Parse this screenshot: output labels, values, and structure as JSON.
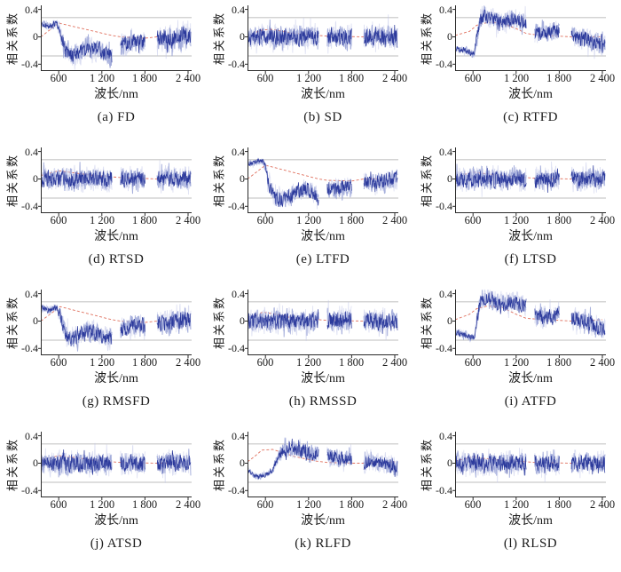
{
  "figure": {
    "description": "Grid of 12 correlation coefficient spectra subplots",
    "rows": 4,
    "cols": 3
  },
  "axes": {
    "ylabel": "相关系数",
    "xlabel": "波长/nm",
    "yticks": [
      0.4,
      0,
      -0.4
    ],
    "ytick_labels": [
      "0.4",
      "0",
      "-0.4"
    ],
    "xticks": [
      600,
      1200,
      1800,
      2400
    ],
    "xtick_labels": [
      "600",
      "1 200",
      "1 800",
      "2 400"
    ],
    "xlim": [
      350,
      2450
    ],
    "ylim": [
      -0.5,
      0.46
    ],
    "threshold": 0.28,
    "gaps": [
      [
        1340,
        1460
      ],
      [
        1800,
        1970
      ]
    ],
    "grid": false
  },
  "colors": {
    "line_main": "#2c3a9c",
    "line_halo": "#98a2d6",
    "line_faint": "#bdc3e7",
    "trend_red": "#e0715f",
    "threshold_gray": "#a9a9a9",
    "axis_black": "#2a2a2a",
    "background": "#ffffff",
    "text": "#1a1a1a"
  },
  "chart_data": [
    {
      "id": "a",
      "type": "line",
      "caption": "(a) FD",
      "method": "FD",
      "seed": 3,
      "blue_trend": {
        "x": [
          350,
          480,
          560,
          610,
          650,
          700,
          800,
          900,
          1000,
          1100,
          1200,
          1300,
          1340,
          1460,
          1600,
          1700,
          1800,
          1970,
          2100,
          2250,
          2400
        ],
        "y": [
          0.2,
          0.16,
          0.2,
          0.12,
          -0.04,
          -0.2,
          -0.27,
          -0.22,
          -0.16,
          -0.18,
          -0.22,
          -0.26,
          -0.28,
          -0.12,
          -0.08,
          -0.06,
          -0.1,
          -0.02,
          -0.04,
          0.0,
          0.02
        ]
      },
      "noise_amp": {
        "x": [
          350,
          590,
          650,
          1970,
          2100,
          2400
        ],
        "a": [
          0.04,
          0.05,
          0.12,
          0.12,
          0.14,
          0.15
        ]
      },
      "red_trend": {
        "x": [
          350,
          600,
          1340,
          1460,
          1800,
          1970,
          2400
        ],
        "y": [
          0.0,
          0.2,
          0.02,
          0.0,
          -0.02,
          0.0,
          0.01
        ]
      }
    },
    {
      "id": "b",
      "type": "line",
      "caption": "(b) SD",
      "method": "SD",
      "seed": 7,
      "blue_trend": {
        "x": [
          350,
          2400
        ],
        "y": [
          0,
          0
        ]
      },
      "noise_amp": {
        "x": [
          350,
          2400
        ],
        "a": [
          0.13,
          0.14
        ]
      },
      "red_trend": {
        "x": [
          350,
          550,
          700,
          1000,
          1340,
          1460,
          1970,
          2400
        ],
        "y": [
          0.02,
          0.1,
          0.11,
          0.05,
          0.02,
          0.01,
          0.0,
          0.02
        ]
      }
    },
    {
      "id": "c",
      "type": "line",
      "caption": "(c) RTFD",
      "method": "RTFD",
      "seed": 11,
      "blue_trend": {
        "x": [
          350,
          500,
          560,
          620,
          650,
          700,
          760,
          850,
          1000,
          1150,
          1300,
          1340,
          1460,
          1600,
          1800,
          1970,
          2100,
          2250,
          2400
        ],
        "y": [
          -0.17,
          -0.2,
          -0.23,
          -0.24,
          -0.02,
          0.26,
          0.3,
          0.27,
          0.22,
          0.26,
          0.22,
          0.2,
          0.07,
          0.04,
          0.1,
          0.03,
          0.0,
          -0.06,
          -0.12
        ]
      },
      "noise_amp": {
        "x": [
          350,
          620,
          670,
          1970,
          2400
        ],
        "a": [
          0.04,
          0.05,
          0.11,
          0.11,
          0.13
        ]
      },
      "red_trend": {
        "x": [
          350,
          550,
          650,
          800,
          1000,
          1200,
          1340,
          1460,
          1800,
          1970,
          2400
        ],
        "y": [
          0.02,
          0.08,
          0.17,
          0.21,
          0.2,
          0.12,
          0.05,
          0.03,
          0.01,
          0.0,
          0.0
        ]
      }
    },
    {
      "id": "d",
      "type": "line",
      "caption": "(d) RTSD",
      "method": "RTSD",
      "seed": 13,
      "blue_trend": {
        "x": [
          350,
          2400
        ],
        "y": [
          0,
          0
        ]
      },
      "noise_amp": {
        "x": [
          350,
          2400
        ],
        "a": [
          0.13,
          0.13
        ]
      },
      "red_trend": {
        "x": [
          350,
          600,
          800,
          1100,
          1340,
          1460,
          1970,
          2400
        ],
        "y": [
          0.05,
          0.12,
          0.09,
          0.05,
          0.03,
          0.02,
          0.0,
          0.01
        ]
      }
    },
    {
      "id": "e",
      "type": "line",
      "caption": "(e) LTFD",
      "method": "LTFD",
      "seed": 17,
      "blue_trend": {
        "x": [
          350,
          480,
          560,
          600,
          650,
          720,
          800,
          900,
          1000,
          1150,
          1250,
          1340,
          1460,
          1600,
          1800,
          1970,
          2100,
          2250,
          2400
        ],
        "y": [
          0.22,
          0.25,
          0.26,
          0.18,
          -0.08,
          -0.26,
          -0.3,
          -0.26,
          -0.2,
          -0.16,
          -0.2,
          -0.3,
          -0.16,
          -0.14,
          -0.1,
          -0.02,
          -0.06,
          -0.03,
          0.0
        ]
      },
      "noise_amp": {
        "x": [
          350,
          580,
          650,
          1970,
          2400
        ],
        "a": [
          0.03,
          0.04,
          0.11,
          0.11,
          0.13
        ]
      },
      "red_trend": {
        "x": [
          350,
          600,
          1340,
          1460,
          1800,
          1970,
          2400
        ],
        "y": [
          0.0,
          0.2,
          0.0,
          -0.02,
          -0.03,
          0.0,
          0.01
        ]
      }
    },
    {
      "id": "f",
      "type": "line",
      "caption": "(f) LTSD",
      "method": "LTSD",
      "seed": 19,
      "blue_trend": {
        "x": [
          350,
          2400
        ],
        "y": [
          0,
          0
        ]
      },
      "noise_amp": {
        "x": [
          350,
          2400
        ],
        "a": [
          0.13,
          0.13
        ]
      },
      "red_trend": {
        "x": [
          350,
          600,
          900,
          1340,
          1460,
          1970,
          2400
        ],
        "y": [
          0.03,
          0.1,
          0.06,
          0.02,
          0.01,
          0.0,
          0.01
        ]
      }
    },
    {
      "id": "g",
      "type": "line",
      "caption": "(g) RMSFD",
      "method": "RMSFD",
      "seed": 23,
      "blue_trend": {
        "x": [
          350,
          480,
          560,
          610,
          650,
          700,
          800,
          900,
          1000,
          1100,
          1200,
          1300,
          1340,
          1460,
          1600,
          1700,
          1800,
          1970,
          2100,
          2250,
          2400
        ],
        "y": [
          0.2,
          0.16,
          0.21,
          0.12,
          -0.05,
          -0.21,
          -0.27,
          -0.21,
          -0.15,
          -0.18,
          -0.23,
          -0.26,
          -0.28,
          -0.12,
          -0.08,
          -0.05,
          -0.1,
          -0.02,
          -0.04,
          0.0,
          0.02
        ]
      },
      "noise_amp": {
        "x": [
          350,
          590,
          650,
          1970,
          2100,
          2400
        ],
        "a": [
          0.04,
          0.05,
          0.12,
          0.12,
          0.14,
          0.15
        ]
      },
      "red_trend": {
        "x": [
          350,
          620,
          1340,
          1460,
          1800,
          1970,
          2400
        ],
        "y": [
          0.0,
          0.21,
          0.02,
          0.0,
          -0.02,
          0.0,
          0.01
        ]
      }
    },
    {
      "id": "h",
      "type": "line",
      "caption": "(h) RMSSD",
      "method": "RMSSD",
      "seed": 29,
      "blue_trend": {
        "x": [
          350,
          2400
        ],
        "y": [
          0,
          0
        ]
      },
      "noise_amp": {
        "x": [
          350,
          2400
        ],
        "a": [
          0.13,
          0.14
        ]
      },
      "red_trend": {
        "x": [
          350,
          560,
          750,
          1000,
          1340,
          1460,
          1970,
          2400
        ],
        "y": [
          0.02,
          0.13,
          0.1,
          0.04,
          0.02,
          0.01,
          0.0,
          0.02
        ]
      }
    },
    {
      "id": "i",
      "type": "line",
      "caption": "(i) ATFD",
      "method": "ATFD",
      "seed": 31,
      "blue_trend": {
        "x": [
          350,
          500,
          560,
          620,
          650,
          700,
          760,
          850,
          1000,
          1150,
          1300,
          1340,
          1460,
          1600,
          1800,
          1970,
          2100,
          2250,
          2400
        ],
        "y": [
          -0.17,
          -0.2,
          -0.24,
          -0.25,
          0.0,
          0.28,
          0.33,
          0.3,
          0.24,
          0.28,
          0.24,
          0.22,
          0.08,
          0.05,
          0.12,
          0.04,
          0.02,
          -0.04,
          -0.1
        ]
      },
      "noise_amp": {
        "x": [
          350,
          620,
          670,
          1970,
          2400
        ],
        "a": [
          0.04,
          0.05,
          0.11,
          0.11,
          0.13
        ]
      },
      "red_trend": {
        "x": [
          350,
          550,
          650,
          800,
          1000,
          1200,
          1340,
          1460,
          1800,
          1970,
          2400
        ],
        "y": [
          0.02,
          0.1,
          0.18,
          0.22,
          0.2,
          0.1,
          0.04,
          0.03,
          0.01,
          0.0,
          0.02
        ]
      }
    },
    {
      "id": "j",
      "type": "line",
      "caption": "(j) ATSD",
      "method": "ATSD",
      "seed": 37,
      "blue_trend": {
        "x": [
          350,
          2400
        ],
        "y": [
          0,
          0
        ]
      },
      "noise_amp": {
        "x": [
          350,
          2400
        ],
        "a": [
          0.13,
          0.13
        ]
      },
      "red_trend": {
        "x": [
          350,
          600,
          850,
          1100,
          1340,
          1460,
          1970,
          2400
        ],
        "y": [
          0.04,
          0.11,
          0.08,
          0.04,
          0.02,
          0.01,
          0.0,
          0.01
        ]
      }
    },
    {
      "id": "k",
      "type": "line",
      "caption": "(k) RLFD",
      "method": "RLFD",
      "seed": 41,
      "blue_trend": {
        "x": [
          350,
          430,
          500,
          560,
          620,
          680,
          720,
          780,
          850,
          950,
          1100,
          1250,
          1340,
          1460,
          1600,
          1800,
          1970,
          2100,
          2250,
          2400
        ],
        "y": [
          -0.1,
          -0.17,
          -0.2,
          -0.18,
          -0.16,
          -0.12,
          -0.06,
          0.1,
          0.18,
          0.2,
          0.19,
          0.14,
          0.12,
          0.1,
          0.08,
          0.05,
          0.0,
          0.02,
          0.0,
          -0.06
        ]
      },
      "noise_amp": {
        "x": [
          350,
          700,
          780,
          2400
        ],
        "a": [
          0.03,
          0.04,
          0.1,
          0.11
        ]
      },
      "red_trend": {
        "x": [
          350,
          450,
          550,
          700,
          1000,
          1300,
          1460,
          1800,
          1970,
          2400
        ],
        "y": [
          0.02,
          0.1,
          0.19,
          0.2,
          0.1,
          0.03,
          0.01,
          0.0,
          0.0,
          0.02
        ]
      }
    },
    {
      "id": "l",
      "type": "line",
      "caption": "(l) RLSD",
      "method": "RLSD",
      "seed": 43,
      "blue_trend": {
        "x": [
          350,
          2400
        ],
        "y": [
          0,
          0
        ]
      },
      "noise_amp": {
        "x": [
          350,
          2400
        ],
        "a": [
          0.13,
          0.13
        ]
      },
      "red_trend": {
        "x": [
          350,
          600,
          900,
          1340,
          1460,
          1970,
          2400
        ],
        "y": [
          0.03,
          0.09,
          0.05,
          0.02,
          0.01,
          0.0,
          0.01
        ]
      }
    }
  ]
}
